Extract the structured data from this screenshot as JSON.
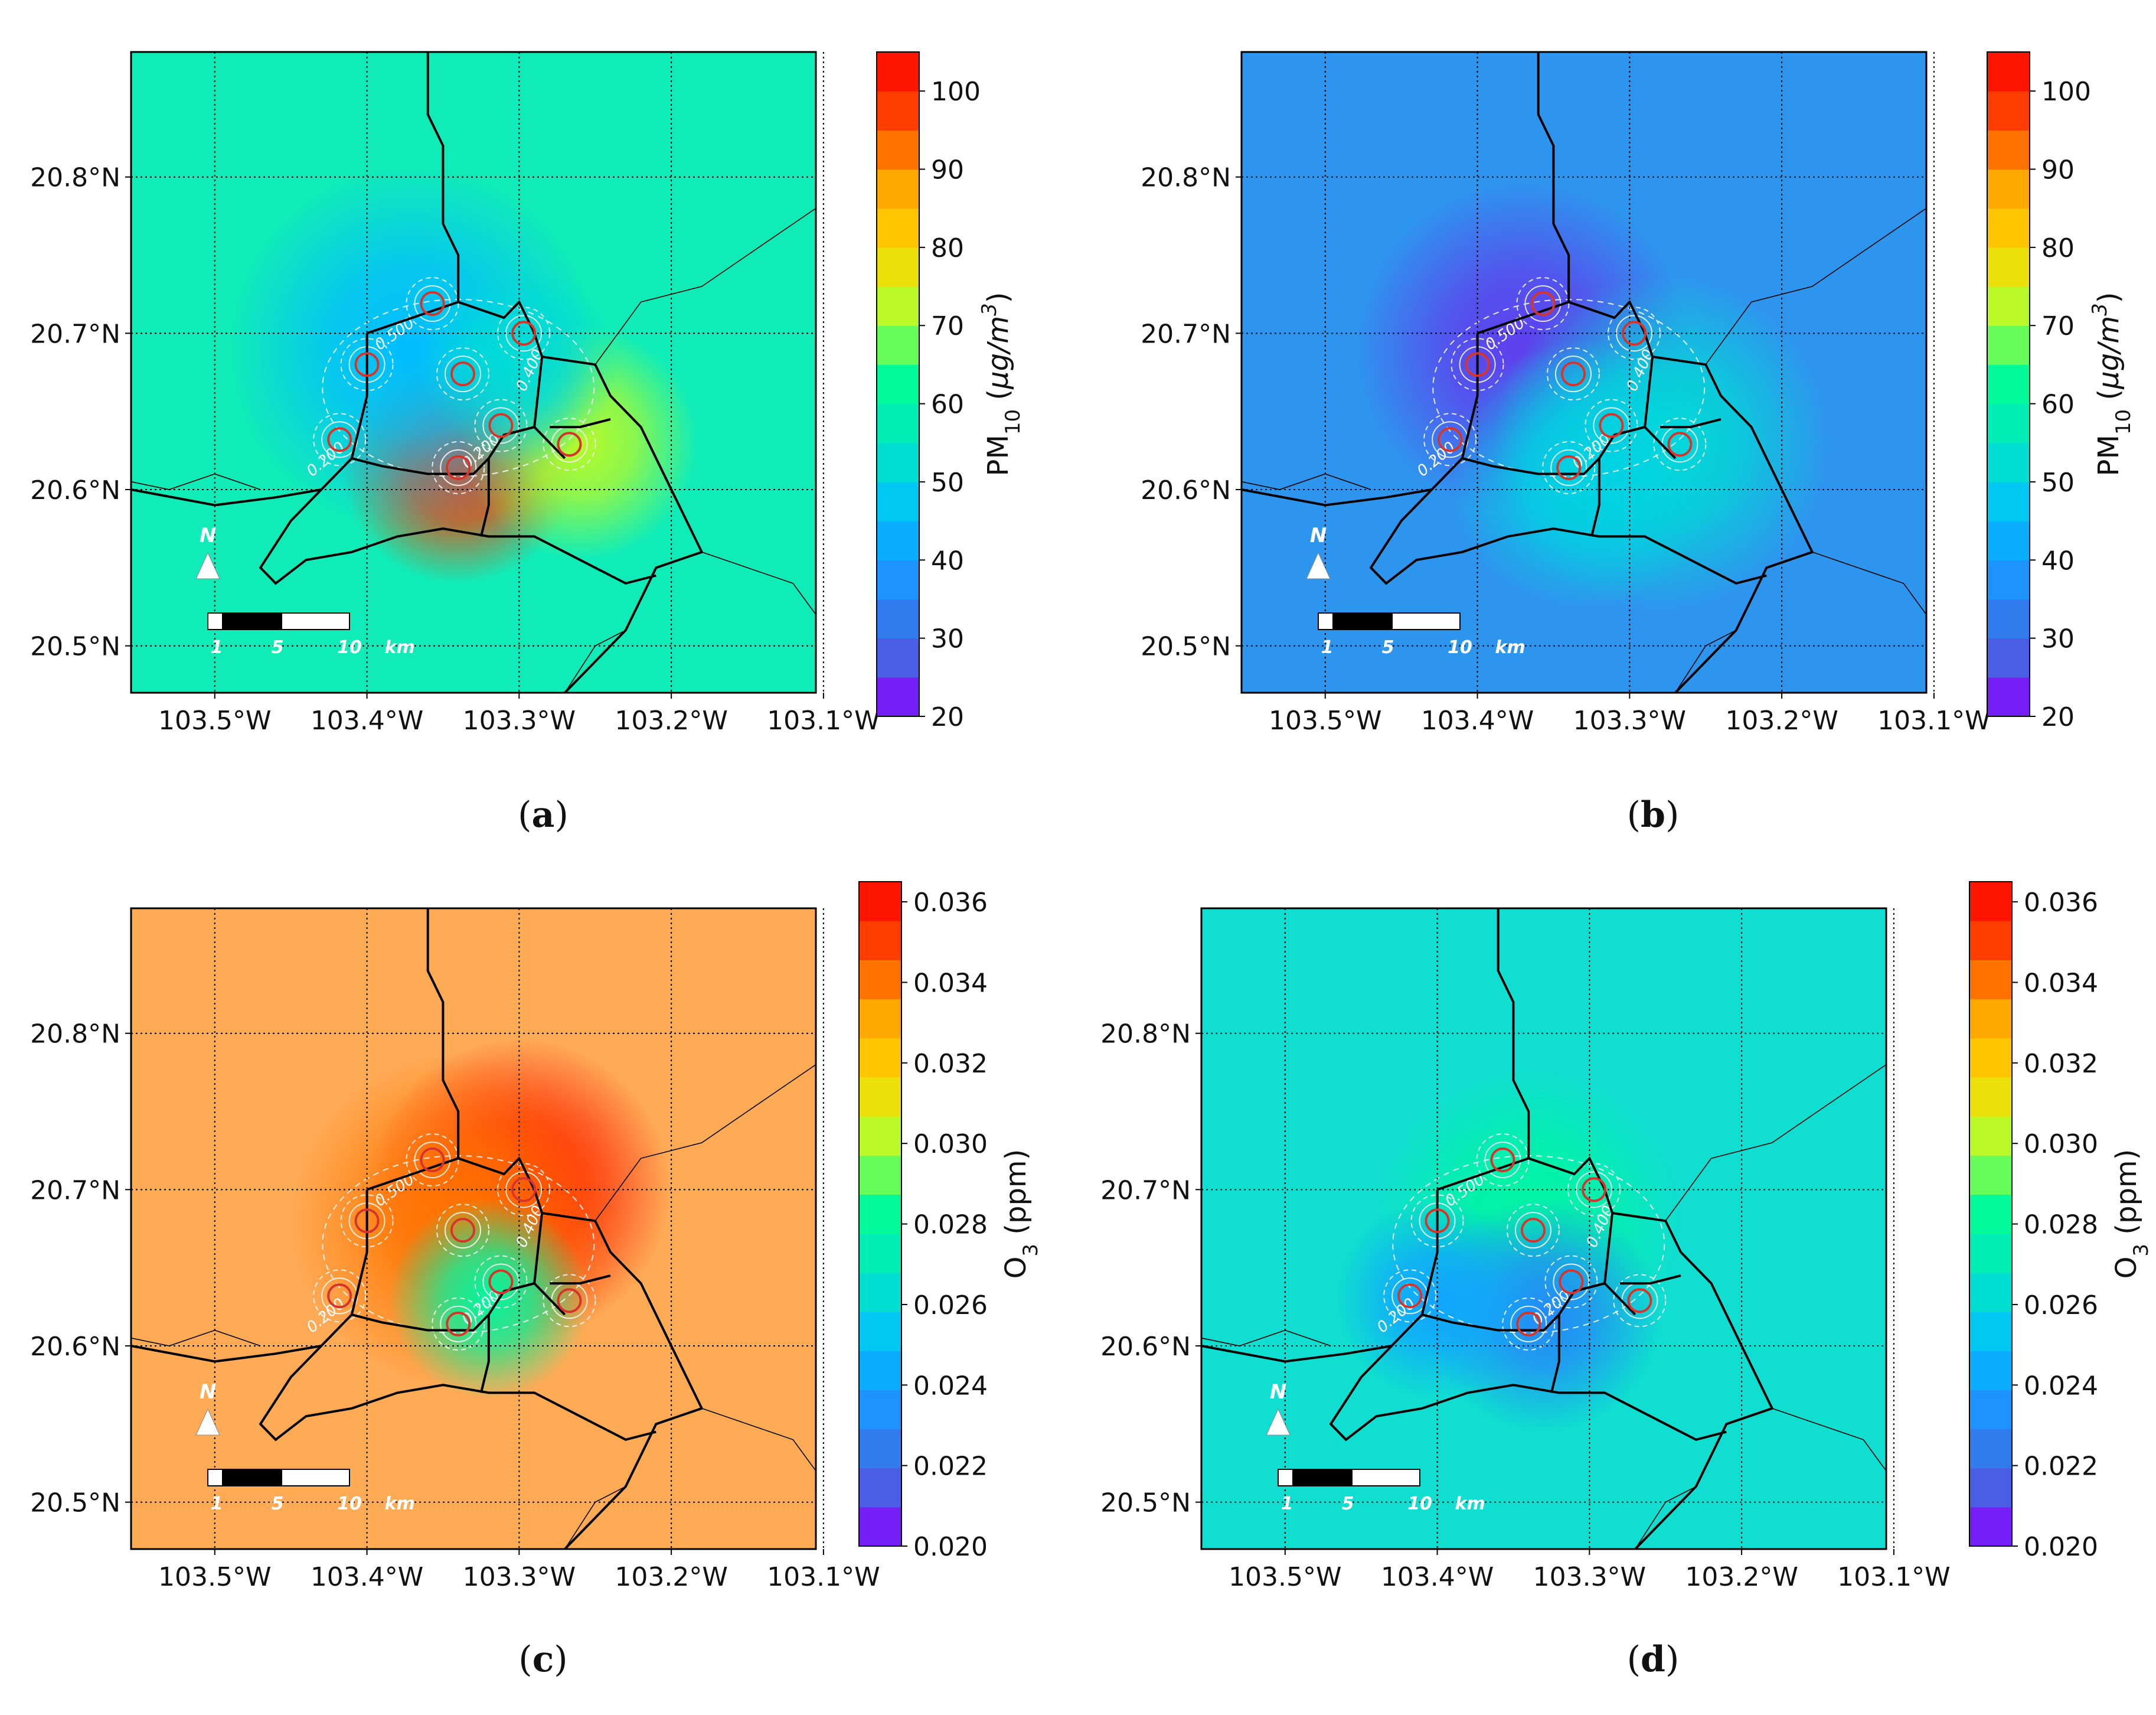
{
  "figure": {
    "panels": [
      {
        "id": "a",
        "caption_open": "(",
        "caption_letter": "a",
        "caption_close": ")",
        "bg_color": "#10ECB8",
        "hotspots": [
          {
            "lon": -103.34,
            "lat": 20.615,
            "level": 98,
            "sigma": 0.035
          },
          {
            "lon": -103.26,
            "lat": 20.63,
            "level": 72,
            "sigma": 0.035
          },
          {
            "lon": -103.37,
            "lat": 20.69,
            "level": 45,
            "sigma": 0.055
          },
          {
            "lon": -103.3,
            "lat": 20.68,
            "level": 52,
            "sigma": 0.03
          }
        ],
        "colorbar_id": "pm10"
      },
      {
        "id": "b",
        "caption_open": "(",
        "caption_letter": "b",
        "caption_close": ")",
        "bg_color": "#2E95EE",
        "hotspots": [
          {
            "lon": -103.37,
            "lat": 20.69,
            "level": 25,
            "sigma": 0.05
          },
          {
            "lon": -103.28,
            "lat": 20.63,
            "level": 52,
            "sigma": 0.05
          },
          {
            "lon": -103.33,
            "lat": 20.61,
            "level": 50,
            "sigma": 0.04
          }
        ],
        "colorbar_id": "pm10"
      },
      {
        "id": "c",
        "caption_open": "(",
        "caption_letter": "c",
        "caption_close": ")",
        "bg_color": "#FFAA55",
        "hotspots": [
          {
            "lon": -103.3,
            "lat": 20.7,
            "level": 0.036,
            "sigma": 0.045
          },
          {
            "lon": -103.34,
            "lat": 20.68,
            "level": 0.034,
            "sigma": 0.05
          },
          {
            "lon": -103.32,
            "lat": 20.63,
            "level": 0.028,
            "sigma": 0.03
          }
        ],
        "colorbar_id": "o3"
      },
      {
        "id": "d",
        "caption_open": "(",
        "caption_letter": "d",
        "caption_close": ")",
        "bg_color": "#0FDED0",
        "hotspots": [
          {
            "lon": -103.34,
            "lat": 20.68,
            "level": 0.028,
            "sigma": 0.045
          },
          {
            "lon": -103.33,
            "lat": 20.62,
            "level": 0.023,
            "sigma": 0.035
          },
          {
            "lon": -103.4,
            "lat": 20.63,
            "level": 0.024,
            "sigma": 0.03
          }
        ],
        "colorbar_id": "o3"
      }
    ],
    "axes": {
      "x_ticks": [
        -103.5,
        -103.4,
        -103.3,
        -103.2,
        -103.1
      ],
      "x_tick_labels": [
        "103.5°W",
        "103.4°W",
        "103.3°W",
        "103.2°W",
        "103.1°W"
      ],
      "y_ticks": [
        20.5,
        20.6,
        20.7,
        20.8
      ],
      "y_tick_labels": [
        "20.5°N",
        "20.6°N",
        "20.7°N",
        "20.8°N"
      ],
      "lon_range": [
        -103.555,
        -103.105
      ],
      "lat_range": [
        20.47,
        20.88
      ]
    },
    "stations": [
      {
        "lon": -103.357,
        "lat": 20.719
      },
      {
        "lon": -103.297,
        "lat": 20.7
      },
      {
        "lon": -103.4,
        "lat": 20.68
      },
      {
        "lon": -103.337,
        "lat": 20.674
      },
      {
        "lon": -103.312,
        "lat": 20.641
      },
      {
        "lon": -103.418,
        "lat": 20.632
      },
      {
        "lon": -103.267,
        "lat": 20.629
      },
      {
        "lon": -103.34,
        "lat": 20.614
      }
    ],
    "contour_labels": [
      "0.500",
      "0.400",
      "0.200"
    ],
    "scale_bar": {
      "labels": [
        "1",
        "5",
        "10"
      ],
      "unit": "km"
    },
    "north_arrow": "N",
    "colorbars": {
      "pm10": {
        "label_main": "PM",
        "label_sub": "10",
        "label_unit_open": " (",
        "label_unit": "μg/m",
        "label_unit_sup": "3",
        "label_unit_close": ")",
        "min": 20,
        "max": 105,
        "ticks": [
          20,
          30,
          40,
          50,
          60,
          70,
          80,
          90,
          100
        ],
        "tick_labels": [
          "20",
          "30",
          "40",
          "50",
          "60",
          "70",
          "80",
          "90",
          "100"
        ]
      },
      "o3": {
        "label_main": "O",
        "label_sub": "3",
        "label_unit_open": " (",
        "label_unit": "ppm",
        "label_unit_sup": "",
        "label_unit_close": ")",
        "min": 0.02,
        "max": 0.0365,
        "ticks": [
          0.02,
          0.022,
          0.024,
          0.026,
          0.028,
          0.03,
          0.032,
          0.034,
          0.036
        ],
        "tick_labels": [
          "0.020",
          "0.022",
          "0.024",
          "0.026",
          "0.028",
          "0.030",
          "0.032",
          "0.034",
          "0.036"
        ]
      }
    },
    "colormap": [
      "#8B00FF",
      "#4169E1",
      "#1E90FF",
      "#00BFFF",
      "#00E5C8",
      "#00FA9A",
      "#ADFF2F",
      "#FFD700",
      "#FFA500",
      "#FF4500",
      "#FF0000"
    ]
  }
}
